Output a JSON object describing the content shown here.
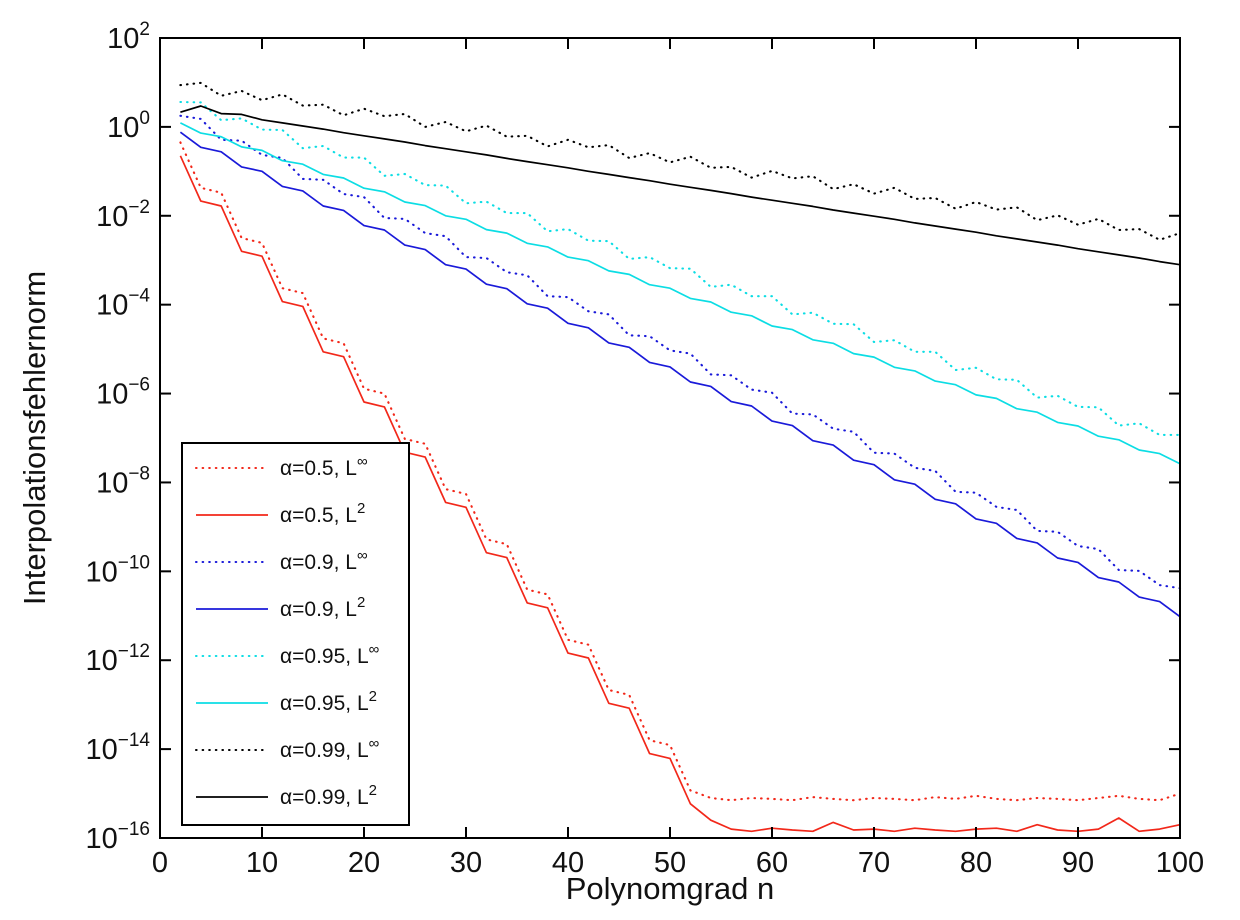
{
  "figure": {
    "background": "#ffffff"
  },
  "colors": {
    "red": "#f2281a",
    "blue": "#1a1ad9",
    "cyan": "#0cdde4",
    "black": "#000000",
    "frame": "#000000"
  },
  "chart_data": {
    "type": "line",
    "title": "",
    "xlabel": "Polynomgrad n",
    "ylabel": "Interpolationsfehlernorm",
    "grid": false,
    "legend_position": "lower-left",
    "x_axis": {
      "min": 0,
      "max": 100,
      "ticks": [
        0,
        10,
        20,
        30,
        40,
        50,
        60,
        70,
        80,
        90,
        100
      ]
    },
    "y_axis": {
      "scale": "log10",
      "base_label": "10",
      "min_exponent": -16,
      "max_exponent": 2,
      "tick_exponents": [
        2,
        0,
        -2,
        -4,
        -6,
        -8,
        -10,
        -12,
        -14,
        -16
      ]
    },
    "x": [
      2,
      4,
      6,
      8,
      10,
      12,
      14,
      16,
      18,
      20,
      22,
      24,
      26,
      28,
      30,
      32,
      34,
      36,
      38,
      40,
      42,
      44,
      46,
      48,
      50,
      52,
      54,
      56,
      58,
      60,
      62,
      64,
      66,
      68,
      70,
      72,
      74,
      76,
      78,
      80,
      82,
      84,
      86,
      88,
      90,
      92,
      94,
      96,
      98,
      100
    ],
    "series": [
      {
        "name": "α=0.5, L∞",
        "label_base": "α=0.5, L",
        "label_sup": "∞",
        "alpha": 0.5,
        "norm": "L-infinity",
        "style": "dotted",
        "color": "#f2281a",
        "log10_values": [
          -0.35,
          -1.37,
          -1.48,
          -2.5,
          -2.61,
          -3.63,
          -3.74,
          -4.76,
          -4.87,
          -5.89,
          -6.0,
          -7.02,
          -7.13,
          -8.15,
          -8.26,
          -9.28,
          -9.39,
          -10.41,
          -10.52,
          -11.54,
          -11.65,
          -12.67,
          -12.78,
          -13.8,
          -13.91,
          -14.93,
          -15.1,
          -15.15,
          -15.1,
          -15.12,
          -15.15,
          -15.08,
          -15.12,
          -15.15,
          -15.1,
          -15.12,
          -15.15,
          -15.08,
          -15.12,
          -15.05,
          -15.12,
          -15.15,
          -15.1,
          -15.12,
          -15.15,
          -15.1,
          -15.05,
          -15.12,
          -15.15,
          -15.0
        ]
      },
      {
        "name": "α=0.5, L2",
        "label_base": "α=0.5, L",
        "label_sup": "2",
        "alpha": 0.5,
        "norm": "L2",
        "style": "solid",
        "color": "#f2281a",
        "log10_values": [
          -0.65,
          -1.67,
          -1.78,
          -2.8,
          -2.91,
          -3.93,
          -4.04,
          -5.06,
          -5.17,
          -6.19,
          -6.3,
          -7.32,
          -7.43,
          -8.45,
          -8.56,
          -9.58,
          -9.69,
          -10.71,
          -10.82,
          -11.84,
          -11.95,
          -12.97,
          -13.08,
          -14.1,
          -14.21,
          -15.23,
          -15.6,
          -15.8,
          -15.85,
          -15.78,
          -15.82,
          -15.85,
          -15.65,
          -15.82,
          -15.8,
          -15.85,
          -15.78,
          -15.82,
          -15.85,
          -15.8,
          -15.78,
          -15.85,
          -15.7,
          -15.82,
          -15.85,
          -15.8,
          -15.55,
          -15.85,
          -15.8,
          -15.7
        ]
      },
      {
        "name": "α=0.9, L∞",
        "label_base": "α=0.9, L",
        "label_sup": "∞",
        "alpha": 0.9,
        "norm": "L-infinity",
        "style": "dotted",
        "color": "#1a1ad9",
        "log10_values": [
          0.25,
          0.18,
          -0.29,
          -0.31,
          -0.63,
          -0.7,
          -1.17,
          -1.19,
          -1.51,
          -1.58,
          -2.05,
          -2.07,
          -2.39,
          -2.46,
          -2.93,
          -2.95,
          -3.27,
          -3.34,
          -3.81,
          -3.83,
          -4.15,
          -4.22,
          -4.69,
          -4.71,
          -5.03,
          -5.1,
          -5.57,
          -5.59,
          -5.91,
          -5.98,
          -6.45,
          -6.47,
          -6.79,
          -6.86,
          -7.33,
          -7.35,
          -7.67,
          -7.74,
          -8.21,
          -8.23,
          -8.55,
          -8.62,
          -9.09,
          -9.11,
          -9.43,
          -9.5,
          -9.97,
          -9.99,
          -10.31,
          -10.38
        ]
      },
      {
        "name": "α=0.9, L2",
        "label_base": "α=0.9, L",
        "label_sup": "2",
        "alpha": 0.9,
        "norm": "L2",
        "style": "solid",
        "color": "#1a1ad9",
        "log10_values": [
          -0.12,
          -0.46,
          -0.56,
          -0.9,
          -1.0,
          -1.34,
          -1.44,
          -1.78,
          -1.88,
          -2.22,
          -2.32,
          -2.66,
          -2.76,
          -3.1,
          -3.2,
          -3.54,
          -3.64,
          -3.98,
          -4.08,
          -4.42,
          -4.52,
          -4.86,
          -4.96,
          -5.3,
          -5.4,
          -5.74,
          -5.84,
          -6.18,
          -6.28,
          -6.62,
          -6.72,
          -7.06,
          -7.16,
          -7.5,
          -7.6,
          -7.94,
          -8.04,
          -8.38,
          -8.48,
          -8.82,
          -8.92,
          -9.26,
          -9.36,
          -9.7,
          -9.8,
          -10.14,
          -10.24,
          -10.58,
          -10.68,
          -11.02
        ]
      },
      {
        "name": "α=0.95, L∞",
        "label_base": "α=0.95, L",
        "label_sup": "∞",
        "alpha": 0.95,
        "norm": "L-infinity",
        "style": "dotted",
        "color": "#0cdde4",
        "log10_values": [
          0.56,
          0.55,
          0.15,
          0.19,
          -0.06,
          -0.07,
          -0.48,
          -0.43,
          -0.69,
          -0.69,
          -1.1,
          -1.06,
          -1.31,
          -1.32,
          -1.72,
          -1.68,
          -1.94,
          -1.94,
          -2.35,
          -2.3,
          -2.56,
          -2.57,
          -2.97,
          -2.93,
          -3.18,
          -3.19,
          -3.6,
          -3.55,
          -3.81,
          -3.81,
          -4.22,
          -4.18,
          -4.43,
          -4.44,
          -4.84,
          -4.8,
          -5.06,
          -5.06,
          -5.47,
          -5.42,
          -5.68,
          -5.69,
          -6.09,
          -6.05,
          -6.3,
          -6.31,
          -6.72,
          -6.67,
          -6.93,
          -6.93
        ]
      },
      {
        "name": "α=0.95, L2",
        "label_base": "α=0.95, L",
        "label_sup": "2",
        "alpha": 0.95,
        "norm": "L2",
        "style": "solid",
        "color": "#0cdde4",
        "log10_values": [
          0.09,
          -0.14,
          -0.22,
          -0.45,
          -0.53,
          -0.76,
          -0.84,
          -1.07,
          -1.15,
          -1.38,
          -1.46,
          -1.69,
          -1.77,
          -2.0,
          -2.08,
          -2.31,
          -2.39,
          -2.62,
          -2.7,
          -2.93,
          -3.01,
          -3.24,
          -3.32,
          -3.55,
          -3.63,
          -3.86,
          -3.94,
          -4.17,
          -4.25,
          -4.48,
          -4.56,
          -4.79,
          -4.87,
          -5.1,
          -5.18,
          -5.41,
          -5.49,
          -5.72,
          -5.8,
          -6.03,
          -6.11,
          -6.34,
          -6.42,
          -6.65,
          -6.73,
          -6.96,
          -7.04,
          -7.27,
          -7.35,
          -7.58
        ]
      },
      {
        "name": "α=0.99, L∞",
        "label_base": "α=0.99, L",
        "label_sup": "∞",
        "alpha": 0.99,
        "norm": "L-infinity",
        "style": "dotted",
        "color": "#000000",
        "log10_values": [
          0.94,
          0.99,
          0.7,
          0.81,
          0.6,
          0.73,
          0.48,
          0.5,
          0.26,
          0.41,
          0.24,
          0.29,
          0.0,
          0.11,
          -0.1,
          0.03,
          -0.22,
          -0.2,
          -0.44,
          -0.29,
          -0.46,
          -0.41,
          -0.7,
          -0.59,
          -0.8,
          -0.67,
          -0.92,
          -0.9,
          -1.14,
          -0.99,
          -1.16,
          -1.11,
          -1.4,
          -1.29,
          -1.5,
          -1.37,
          -1.62,
          -1.6,
          -1.84,
          -1.69,
          -1.86,
          -1.81,
          -2.1,
          -1.99,
          -2.2,
          -2.07,
          -2.32,
          -2.3,
          -2.54,
          -2.39
        ]
      },
      {
        "name": "α=0.99, L2",
        "label_base": "α=0.99, L",
        "label_sup": "2",
        "alpha": 0.99,
        "norm": "L2",
        "style": "solid",
        "color": "#000000",
        "log10_values": [
          0.33,
          0.47,
          0.3,
          0.28,
          0.16,
          0.09,
          0.02,
          -0.05,
          -0.13,
          -0.2,
          -0.27,
          -0.34,
          -0.42,
          -0.49,
          -0.56,
          -0.63,
          -0.71,
          -0.78,
          -0.85,
          -0.92,
          -1.0,
          -1.07,
          -1.14,
          -1.21,
          -1.29,
          -1.36,
          -1.43,
          -1.5,
          -1.58,
          -1.65,
          -1.72,
          -1.79,
          -1.87,
          -1.94,
          -2.01,
          -2.08,
          -2.16,
          -2.23,
          -2.3,
          -2.37,
          -2.45,
          -2.52,
          -2.59,
          -2.66,
          -2.74,
          -2.81,
          -2.88,
          -2.95,
          -3.03,
          -3.1
        ]
      }
    ]
  }
}
